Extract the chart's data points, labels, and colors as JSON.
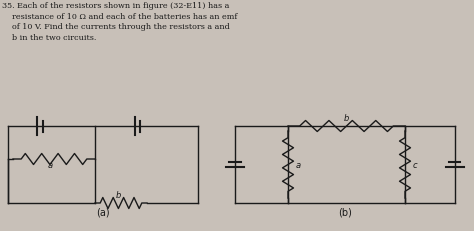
{
  "bg_color": "#c8c0b8",
  "line_color": "#1a1a1a",
  "fig_width": 4.74,
  "fig_height": 2.32,
  "text_line1": "35. Each of the resistors shown in figure (32-E11) has a",
  "text_line2": "    resistance of 10 Ω and each of the batteries has an emf",
  "text_line3": "    of 10 V. Find the currents through the resistors a and",
  "text_line4": "    b in the two circuits."
}
